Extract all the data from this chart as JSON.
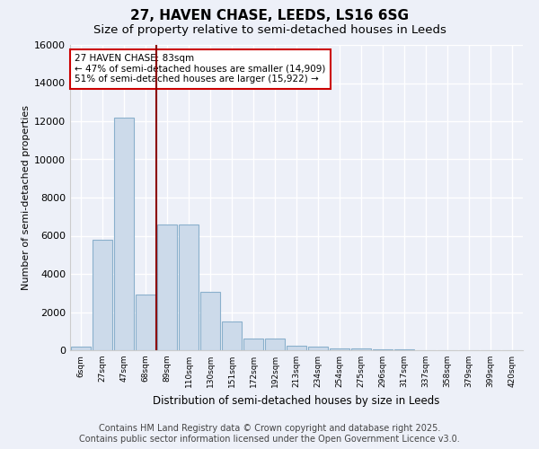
{
  "title": "27, HAVEN CHASE, LEEDS, LS16 6SG",
  "subtitle": "Size of property relative to semi-detached houses in Leeds",
  "xlabel": "Distribution of semi-detached houses by size in Leeds",
  "ylabel": "Number of semi-detached properties",
  "bin_labels": [
    "6sqm",
    "27sqm",
    "47sqm",
    "68sqm",
    "89sqm",
    "110sqm",
    "130sqm",
    "151sqm",
    "172sqm",
    "192sqm",
    "213sqm",
    "234sqm",
    "254sqm",
    "275sqm",
    "296sqm",
    "317sqm",
    "337sqm",
    "358sqm",
    "379sqm",
    "399sqm",
    "420sqm"
  ],
  "bar_heights": [
    200,
    5800,
    12200,
    2900,
    6600,
    6600,
    3050,
    1500,
    600,
    600,
    220,
    200,
    100,
    80,
    50,
    30,
    15,
    10,
    5,
    3,
    2
  ],
  "bar_color": "#ccdaea",
  "bar_edge_color": "#8ab0cc",
  "red_line_x": 3.5,
  "red_line_color": "#8b0000",
  "annotation_text": "27 HAVEN CHASE: 83sqm\n← 47% of semi-detached houses are smaller (14,909)\n51% of semi-detached houses are larger (15,922) →",
  "annotation_box_color": "#ffffff",
  "annotation_box_edge": "#cc0000",
  "ylim": [
    0,
    16000
  ],
  "yticks": [
    0,
    2000,
    4000,
    6000,
    8000,
    10000,
    12000,
    14000,
    16000
  ],
  "footer_line1": "Contains HM Land Registry data © Crown copyright and database right 2025.",
  "footer_line2": "Contains public sector information licensed under the Open Government Licence v3.0.",
  "bg_color": "#edf0f8",
  "grid_color": "#ffffff",
  "title_fontsize": 11,
  "subtitle_fontsize": 9.5,
  "footer_fontsize": 7
}
